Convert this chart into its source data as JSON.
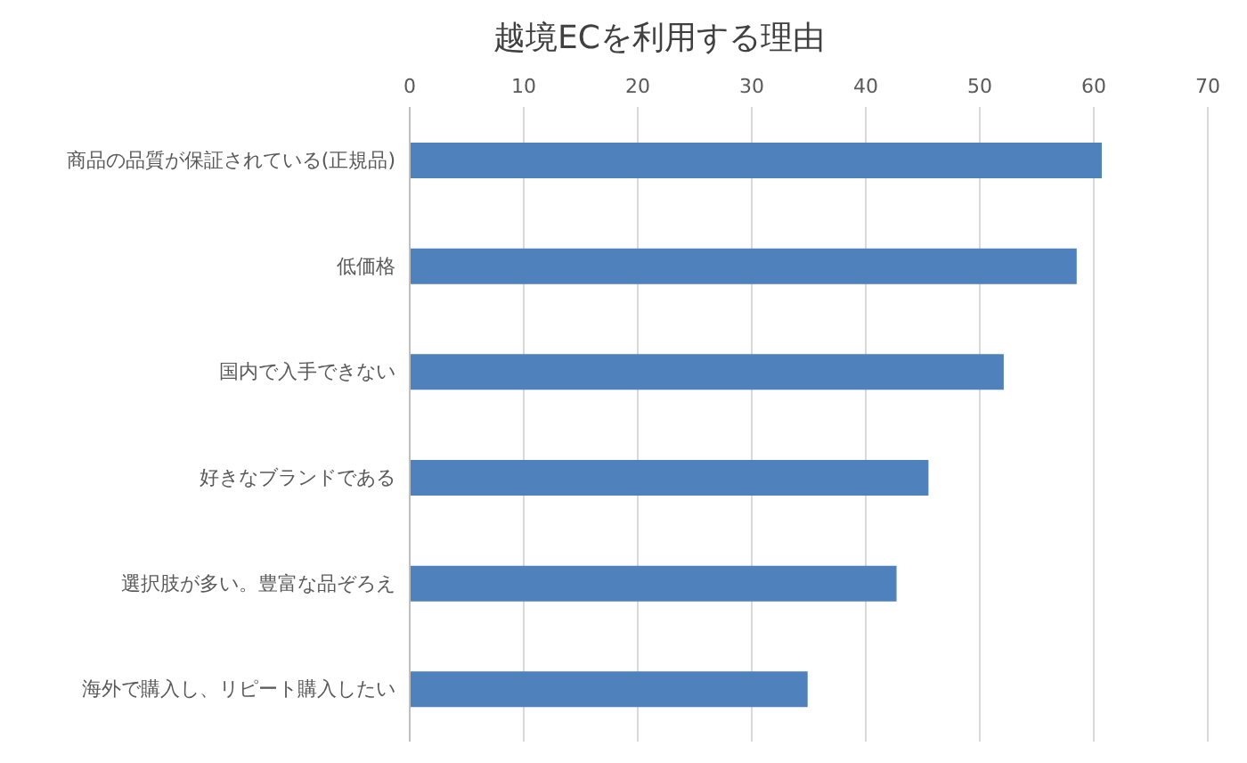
{
  "chart_data": {
    "type": "bar",
    "orientation": "horizontal",
    "title": "越境ECを利用する理由",
    "categories": [
      "商品の品質が保証されている(正規品)",
      "低価格",
      "国内で入手できない",
      "好きなブランドである",
      "選択肢が多い。豊富な品ぞろえ",
      "海外で購入し、リピート購入したい"
    ],
    "values": [
      60.7,
      58.5,
      52.1,
      45.5,
      42.7,
      34.9
    ],
    "color": "#4f81bd",
    "xlim": [
      0,
      70
    ],
    "xticks": [
      0,
      10,
      20,
      30,
      40,
      50,
      60,
      70
    ],
    "grid": "x"
  }
}
